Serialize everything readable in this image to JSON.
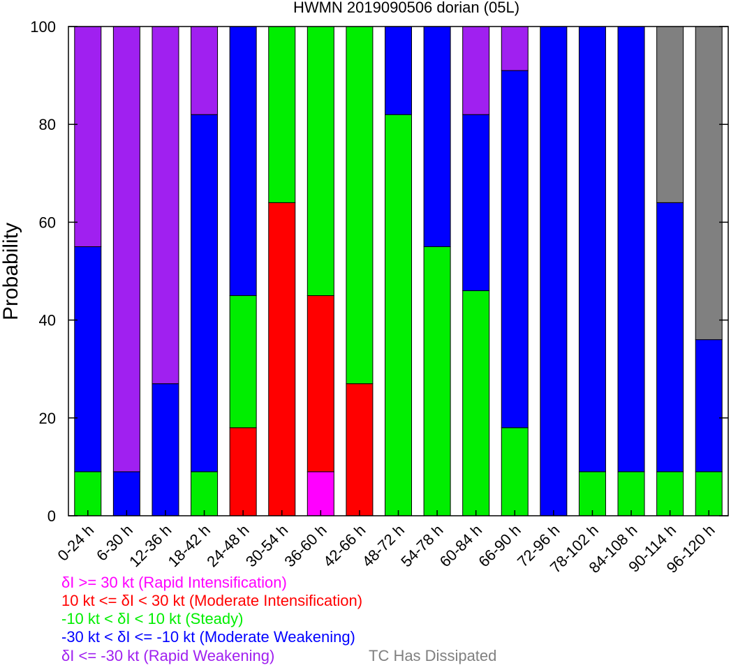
{
  "chart_data": {
    "type": "bar",
    "stacked": true,
    "title": "HWMN 2019090506 dorian (05L)",
    "xlabel": "",
    "ylabel": "Probability",
    "ylim": [
      0,
      100
    ],
    "yticks": [
      0,
      20,
      40,
      60,
      80,
      100
    ],
    "grid": false,
    "categories": [
      "0-24 h",
      "6-30 h",
      "12-36 h",
      "18-42 h",
      "24-48 h",
      "30-54 h",
      "36-60 h",
      "42-66 h",
      "48-72 h",
      "54-78 h",
      "60-84 h",
      "66-90 h",
      "72-96 h",
      "78-102 h",
      "84-108 h",
      "90-114 h",
      "96-120 h"
    ],
    "series": [
      {
        "key": "ri",
        "color": "#ff00ff",
        "values": [
          0,
          0,
          0,
          0,
          0,
          0,
          9,
          0,
          0,
          0,
          0,
          0,
          0,
          0,
          0,
          0,
          0
        ]
      },
      {
        "key": "mi",
        "color": "#ff0000",
        "values": [
          0,
          0,
          0,
          0,
          18,
          64,
          36,
          27,
          0,
          0,
          0,
          0,
          0,
          0,
          0,
          0,
          0
        ]
      },
      {
        "key": "st",
        "color": "#00ee00",
        "values": [
          9,
          0,
          0,
          9,
          27,
          36,
          55,
          73,
          82,
          55,
          46,
          18,
          0,
          9,
          9,
          9,
          9
        ]
      },
      {
        "key": "mw",
        "color": "#0000ff",
        "values": [
          46,
          9,
          27,
          73,
          55,
          0,
          0,
          0,
          18,
          45,
          36,
          73,
          100,
          91,
          91,
          55,
          27
        ]
      },
      {
        "key": "rw",
        "color": "#a020f0",
        "values": [
          45,
          91,
          73,
          18,
          0,
          0,
          0,
          0,
          0,
          0,
          18,
          9,
          0,
          0,
          0,
          0,
          0
        ]
      },
      {
        "key": "dis",
        "color": "#808080",
        "values": [
          0,
          0,
          0,
          0,
          0,
          0,
          0,
          0,
          0,
          0,
          0,
          0,
          0,
          0,
          0,
          36,
          64
        ]
      }
    ]
  },
  "legend": {
    "ri": {
      "label": "δI >= 30 kt (Rapid Intensification)",
      "color": "#ff00ff"
    },
    "mi": {
      "label": "10 kt <= δI < 30 kt (Moderate Intensification)",
      "color": "#ff0000"
    },
    "st": {
      "label": "-10 kt < δI < 10 kt (Steady)",
      "color": "#00ee00"
    },
    "mw": {
      "label": "-30 kt < δI <= -10 kt (Moderate Weakening)",
      "color": "#0000ff"
    },
    "rw": {
      "label": "δI <= -30 kt (Rapid Weakening)",
      "color": "#a020f0"
    },
    "dis": {
      "label": "TC Has Dissipated",
      "color": "#808080"
    }
  }
}
